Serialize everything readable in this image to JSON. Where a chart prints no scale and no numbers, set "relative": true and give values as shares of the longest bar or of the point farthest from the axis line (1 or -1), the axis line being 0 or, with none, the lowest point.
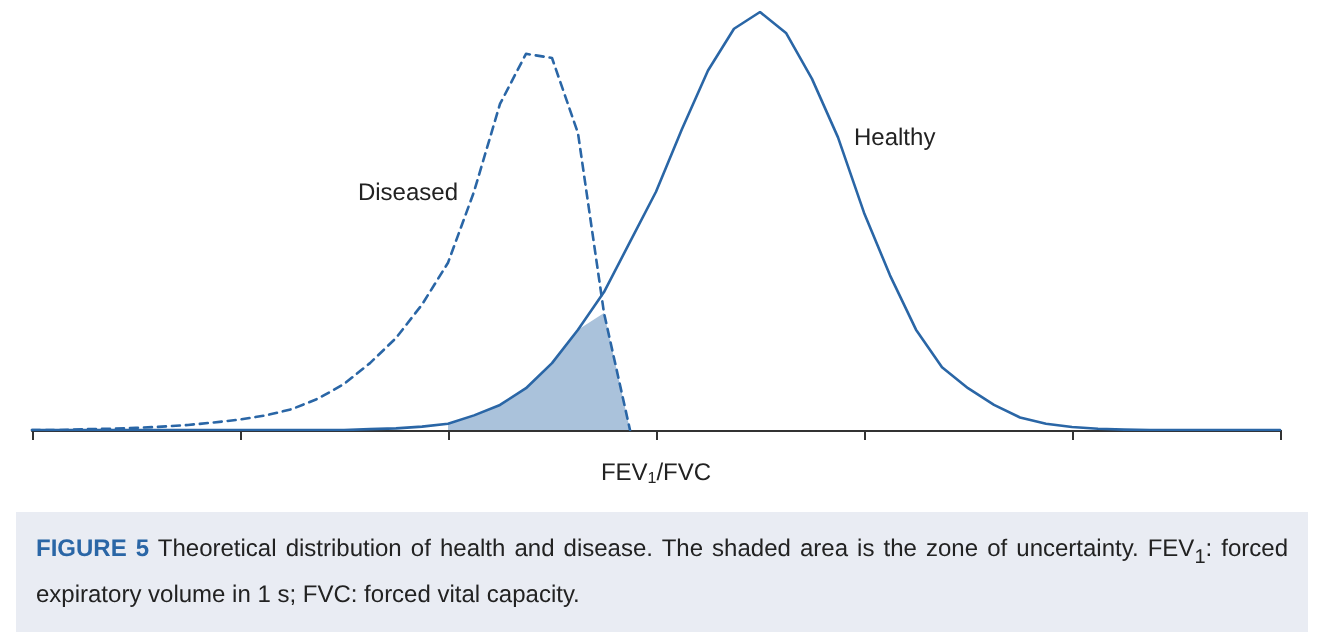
{
  "chart_data": {
    "type": "line",
    "title": "FIGURE 5",
    "subtitle": "Theoretical distribution of health and disease. The shaded area is the zone of uncertainty. FEV$_{1}$: forced expiratory volume in 1 s; FVC: forced vital capacity.",
    "xlabel": "FEV$_{1}$/FVC",
    "relative": true,
    "categories": [
      null,
      null,
      null,
      null,
      null,
      null,
      null,
      null,
      null,
      null,
      null,
      null,
      null,
      null,
      null,
      null,
      null,
      null,
      null,
      null,
      null,
      null,
      null,
      null,
      null,
      null,
      null,
      null,
      null,
      null,
      null,
      null,
      null,
      null,
      null,
      null,
      null,
      null,
      null,
      null,
      null,
      null,
      null,
      null,
      null,
      null,
      null,
      null,
      null
    ],
    "grid": false,
    "legend": false,
    "marker": "none",
    "series": [
      {
        "name": "Diseased",
        "color": "#2a66a6",
        "line_style": "dashed",
        "values": [
          0,
          0,
          0.002,
          0.003,
          0.005,
          0.008,
          0.012,
          0.018,
          0.025,
          0.035,
          0.05,
          0.075,
          0.11,
          0.16,
          0.22,
          0.3,
          0.4,
          0.57,
          0.78,
          0.9,
          0.89,
          0.71,
          0.28,
          0,
          null,
          null,
          null,
          null,
          null,
          null,
          null,
          null,
          null,
          null,
          null,
          null,
          null,
          null,
          null,
          null,
          null,
          null,
          null,
          null,
          null,
          null,
          null,
          null,
          null
        ]
      },
      {
        "name": "Healthy",
        "color": "#2a66a6",
        "line_style": "solid",
        "values": [
          0,
          0,
          0,
          0,
          0,
          0,
          0,
          0,
          0,
          0,
          0,
          0,
          0,
          0.002,
          0.004,
          0.008,
          0.015,
          0.035,
          0.06,
          0.1,
          0.16,
          0.24,
          0.33,
          0.45,
          0.57,
          0.72,
          0.86,
          0.96,
          1,
          0.95,
          0.84,
          0.7,
          0.52,
          0.37,
          0.24,
          0.15,
          0.1,
          0.06,
          0.03,
          0.015,
          0.007,
          0.003,
          0.001,
          0,
          0,
          0,
          0,
          0,
          0
        ],
        "lower": [
          null,
          null,
          null,
          null,
          null,
          null,
          null,
          null,
          null,
          null,
          null,
          null,
          null,
          null,
          null,
          null,
          0,
          0,
          0,
          0,
          0,
          0,
          0,
          0,
          null,
          null,
          null,
          null,
          null,
          null,
          null,
          null,
          null,
          null,
          null,
          null,
          null,
          null,
          null,
          null,
          null,
          null,
          null,
          null,
          null,
          null,
          null,
          null,
          null
        ],
        "upper": [
          null,
          null,
          null,
          null,
          null,
          null,
          null,
          null,
          null,
          null,
          null,
          null,
          null,
          null,
          null,
          null,
          0.015,
          0.035,
          0.06,
          0.1,
          0.16,
          0.24,
          0.28,
          0,
          null,
          null,
          null,
          null,
          null,
          null,
          null,
          null,
          null,
          null,
          null,
          null,
          null,
          null,
          null,
          null,
          null,
          null,
          null,
          null,
          null,
          null,
          null,
          null,
          null
        ]
      }
    ]
  }
}
